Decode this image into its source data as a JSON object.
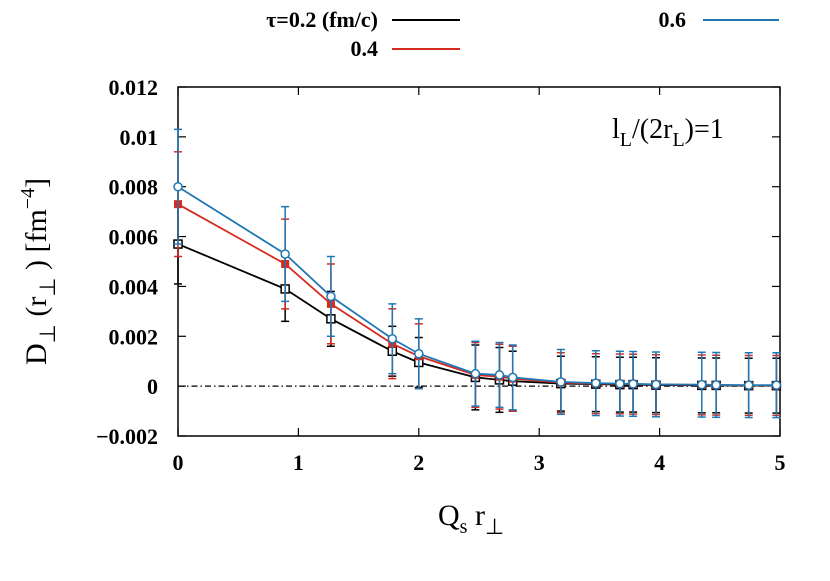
{
  "chart_data": {
    "type": "line",
    "xlabel_main": "Q",
    "xlabel_sub": "s",
    "xlabel_rest": " r",
    "xlabel_sub2": "⊥",
    "ylabel_main": "D",
    "ylabel_sub1": "⊥",
    "ylabel_mid": " (r",
    "ylabel_sub2": "⊥",
    "ylabel_end": " ) [fm",
    "ylabel_sup": "−4",
    "ylabel_close": "]",
    "annotation": {
      "l": "l",
      "sub1": "L",
      "mid": "/(2r",
      "sub2": "L",
      "end": ")=1"
    },
    "xlim": [
      0,
      5
    ],
    "ylim": [
      -0.002,
      0.012
    ],
    "xticks": [
      0,
      1,
      2,
      3,
      4,
      5
    ],
    "yticks": [
      -0.002,
      0,
      0.002,
      0.004,
      0.006,
      0.008,
      0.01,
      0.012
    ],
    "ytick_labels": [
      "−0.002",
      "0",
      "0.002",
      "0.004",
      "0.006",
      "0.008",
      "0.01",
      "0.012"
    ],
    "zero_line": true,
    "grid": false,
    "x": [
      0,
      0.89,
      1.27,
      1.78,
      2.0,
      2.47,
      2.67,
      2.78,
      3.18,
      3.47,
      3.67,
      3.78,
      3.97,
      4.35,
      4.47,
      4.74,
      4.97
    ],
    "series": [
      {
        "name": "τ=0.2 (fm/c)",
        "color": "#000000",
        "marker": "square-open",
        "values": [
          0.0057,
          0.0039,
          0.0027,
          0.0014,
          0.00095,
          0.00035,
          0.00025,
          0.0002,
          0.0001,
          8e-05,
          6e-05,
          6e-05,
          4e-05,
          3e-05,
          3e-05,
          2e-05,
          2e-05
        ],
        "errors": [
          0.0016,
          0.0013,
          0.0011,
          0.001,
          0.001,
          0.0013,
          0.0013,
          0.0012,
          0.0011,
          0.0011,
          0.0011,
          0.0011,
          0.0011,
          0.0011,
          0.0011,
          0.0011,
          0.0011
        ]
      },
      {
        "name": "0.4",
        "color": "#d62b1e",
        "marker": "square-filled",
        "values": [
          0.0073,
          0.0049,
          0.0033,
          0.0017,
          0.0012,
          0.00045,
          0.00038,
          0.0003,
          0.00014,
          0.0001,
          9e-05,
          8e-05,
          6e-05,
          5e-05,
          4e-05,
          3e-05,
          3e-05
        ],
        "errors": [
          0.0021,
          0.0018,
          0.0016,
          0.0014,
          0.0013,
          0.0013,
          0.0013,
          0.0013,
          0.0012,
          0.0012,
          0.0012,
          0.0012,
          0.0012,
          0.0012,
          0.0012,
          0.0012,
          0.0012
        ]
      },
      {
        "name": "0.6",
        "color": "#1f78b4",
        "marker": "circle-open",
        "values": [
          0.008,
          0.0053,
          0.0036,
          0.0019,
          0.0013,
          0.0005,
          0.00045,
          0.00035,
          0.00017,
          0.00012,
          0.0001,
          9e-05,
          7e-05,
          6e-05,
          5e-05,
          4e-05,
          4e-05
        ],
        "errors": [
          0.0023,
          0.0019,
          0.0016,
          0.0014,
          0.0014,
          0.0013,
          0.0013,
          0.0013,
          0.0013,
          0.0013,
          0.0013,
          0.0013,
          0.0013,
          0.0013,
          0.0013,
          0.0013,
          0.0013
        ]
      }
    ],
    "legend_placement": "top"
  }
}
